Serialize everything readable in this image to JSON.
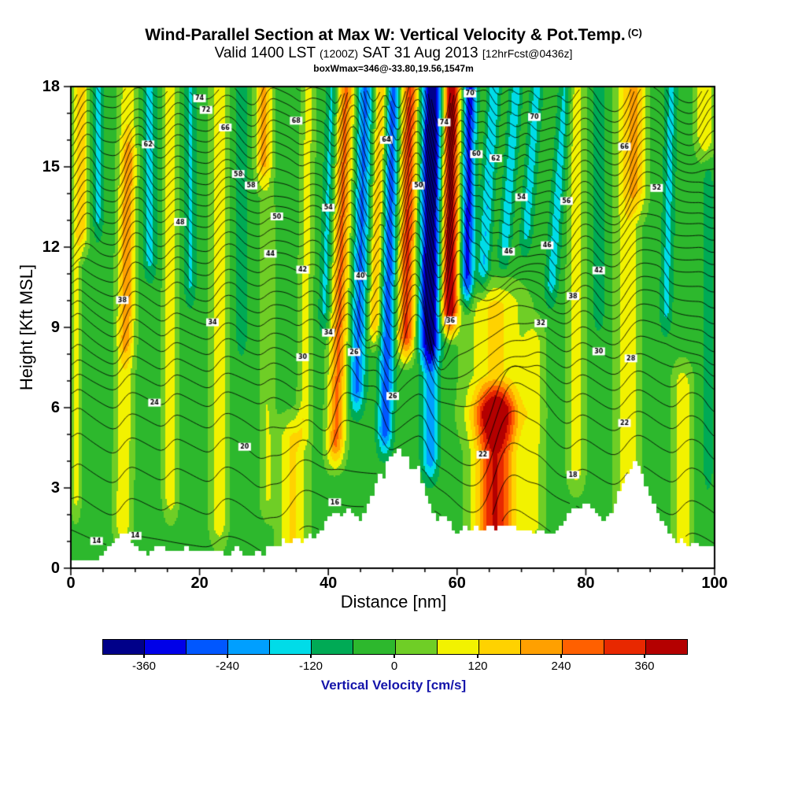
{
  "title": {
    "main": "Wind-Parallel Section at Max W: Vertical Velocity & Pot.Temp.",
    "main_suffix": "(C)",
    "valid_pre": "Valid 1400 LST ",
    "valid_small1": "(1200Z)",
    "valid_mid": " SAT 31 Aug 2013 ",
    "valid_small2": "[12hrFcst@0436z]",
    "box_line": "boxWmax=346@-33.80,19.56,1547m"
  },
  "chart_data": {
    "type": "heatmap",
    "title": "Wind-Parallel Section at Max W: Vertical Velocity & Pot.Temp. (C)",
    "subtitle": "Valid 1400 LST (1200Z) SAT 31 Aug 2013 [12hrFcst@0436z]",
    "annotation": "boxWmax=346@-33.80,19.56,1547m",
    "xlabel": "Distance [nm]",
    "ylabel": "Height [Kft MSL]",
    "xlim": [
      0,
      100
    ],
    "ylim": [
      0,
      18
    ],
    "xticks": [
      0,
      20,
      40,
      60,
      80,
      100
    ],
    "yticks": [
      0,
      3,
      6,
      9,
      12,
      15,
      18
    ],
    "grid": false,
    "background_w": -30,
    "colorbar": {
      "label": "Vertical Velocity [cm/s]",
      "label_color": "#1414AA",
      "ticks": [
        -360,
        -240,
        -120,
        0,
        120,
        240,
        360
      ],
      "levels": [
        -420,
        -360,
        -300,
        -240,
        -180,
        -120,
        -60,
        0,
        60,
        120,
        180,
        240,
        300,
        360,
        420
      ],
      "colors": [
        "#000089",
        "#0000E8",
        "#0057FF",
        "#009FFF",
        "#00DCE8",
        "#00AA55",
        "#2DB82D",
        "#6FCE26",
        "#F2F200",
        "#FFD200",
        "#FFA000",
        "#FF6000",
        "#E82800",
        "#B40000"
      ]
    },
    "bands_format": [
      "center_nm",
      "sigma_nm",
      "amplitude_cm_s",
      "z_base_kft",
      "z_top_kft",
      "tilt_nm_per_kft"
    ],
    "bands": [
      [
        1.5,
        1.2,
        200,
        12,
        18,
        0
      ],
      [
        0.8,
        0.8,
        110,
        2,
        12,
        0
      ],
      [
        4.2,
        0.8,
        -110,
        12.5,
        18,
        0
      ],
      [
        8.5,
        1.4,
        140,
        1,
        18,
        0.05
      ],
      [
        8.7,
        1.2,
        120,
        8,
        16,
        0.05
      ],
      [
        12.3,
        1.0,
        -120,
        11,
        18,
        0
      ],
      [
        15.5,
        1.2,
        130,
        2,
        18,
        0
      ],
      [
        18.5,
        0.9,
        -100,
        10,
        18,
        0
      ],
      [
        23,
        1.4,
        130,
        1,
        18,
        0
      ],
      [
        26.5,
        1.0,
        -60,
        8,
        18,
        0
      ],
      [
        30,
        1.3,
        230,
        14.5,
        18,
        0
      ],
      [
        30.5,
        1.2,
        90,
        2,
        14,
        0
      ],
      [
        34.5,
        2.2,
        160,
        0,
        5.5,
        0
      ],
      [
        36.5,
        1.1,
        110,
        5,
        18,
        0.05
      ],
      [
        39.5,
        0.9,
        -120,
        9,
        18,
        0.15
      ],
      [
        41.8,
        1.4,
        280,
        4,
        18,
        0.12
      ],
      [
        44.8,
        1.2,
        -220,
        6,
        18,
        0.12
      ],
      [
        47.3,
        1.0,
        210,
        8.5,
        18,
        0.12
      ],
      [
        49.3,
        1.1,
        -250,
        4.5,
        18,
        0.1
      ],
      [
        52.2,
        1.4,
        340,
        8,
        18,
        0.06
      ],
      [
        55.8,
        1.6,
        -420,
        8,
        18,
        0.05
      ],
      [
        55.8,
        1.2,
        -200,
        3.5,
        8,
        0
      ],
      [
        58.8,
        1.4,
        450,
        9,
        18,
        0.04
      ],
      [
        61.5,
        1.0,
        -300,
        10,
        18,
        0.06
      ],
      [
        63.8,
        0.9,
        -150,
        10.5,
        18,
        0.25
      ],
      [
        66.8,
        0.9,
        -130,
        11.5,
        18,
        0.3
      ],
      [
        70,
        0.9,
        -120,
        12,
        18,
        0.3
      ],
      [
        66,
        3.2,
        395,
        0.5,
        6.5,
        0
      ],
      [
        66,
        4.5,
        160,
        5,
        10.5,
        0
      ],
      [
        72,
        1.6,
        100,
        1,
        9,
        0
      ],
      [
        74.5,
        1.0,
        -120,
        10,
        18,
        0.3
      ],
      [
        78.5,
        1.4,
        120,
        3,
        18,
        0
      ],
      [
        82,
        1.0,
        -70,
        9,
        18,
        0
      ],
      [
        86.5,
        1.9,
        140,
        1,
        18,
        0
      ],
      [
        88,
        1.6,
        140,
        13.5,
        18,
        0
      ],
      [
        92.5,
        0.9,
        -110,
        9,
        18,
        0.1
      ],
      [
        95,
        1.6,
        130,
        0,
        7.5,
        0
      ],
      [
        98.5,
        1.5,
        150,
        15.5,
        18,
        0
      ],
      [
        99,
        0.8,
        -60,
        3,
        15,
        0
      ]
    ],
    "terrain": [
      [
        0,
        0.35
      ],
      [
        1,
        0.3
      ],
      [
        2,
        0.4
      ],
      [
        3,
        0.3
      ],
      [
        4,
        0.35
      ],
      [
        5,
        0.5
      ],
      [
        6,
        0.8
      ],
      [
        7,
        1.1
      ],
      [
        8,
        1.4
      ],
      [
        9,
        1.2
      ],
      [
        10,
        0.8
      ],
      [
        11,
        0.6
      ],
      [
        12,
        0.55
      ],
      [
        13,
        0.7
      ],
      [
        14,
        0.85
      ],
      [
        15,
        0.7
      ],
      [
        16,
        0.6
      ],
      [
        17,
        0.7
      ],
      [
        18,
        0.75
      ],
      [
        19,
        0.6
      ],
      [
        20,
        0.55
      ],
      [
        21,
        0.65
      ],
      [
        22,
        0.7
      ],
      [
        23,
        0.6
      ],
      [
        24,
        0.5
      ],
      [
        25,
        0.6
      ],
      [
        26,
        0.75
      ],
      [
        27,
        0.55
      ],
      [
        28,
        0.45
      ],
      [
        29,
        0.6
      ],
      [
        30,
        0.5
      ],
      [
        31,
        0.9
      ],
      [
        32,
        0.7
      ],
      [
        33,
        1.15
      ],
      [
        34,
        0.95
      ],
      [
        35,
        1.25
      ],
      [
        36,
        1.0
      ],
      [
        37,
        1.3
      ],
      [
        38,
        1.15
      ],
      [
        39,
        1.5
      ],
      [
        40,
        1.8
      ],
      [
        41,
        2.1
      ],
      [
        42,
        1.9
      ],
      [
        43,
        2.25
      ],
      [
        44,
        2.0
      ],
      [
        45,
        1.75
      ],
      [
        46,
        2.3
      ],
      [
        47,
        2.9
      ],
      [
        48,
        3.5
      ],
      [
        48.5,
        3.2
      ],
      [
        49,
        3.9
      ],
      [
        50,
        4.3
      ],
      [
        51,
        4.45
      ],
      [
        51.5,
        4.1
      ],
      [
        52,
        4.3
      ],
      [
        53,
        3.6
      ],
      [
        54,
        3.9
      ],
      [
        54.5,
        3.4
      ],
      [
        55,
        2.8
      ],
      [
        56,
        2.3
      ],
      [
        57,
        1.8
      ],
      [
        58,
        2.0
      ],
      [
        59,
        1.6
      ],
      [
        60,
        1.3
      ],
      [
        61,
        1.6
      ],
      [
        62,
        1.35
      ],
      [
        63,
        1.55
      ],
      [
        64,
        1.4
      ],
      [
        65,
        1.6
      ],
      [
        66,
        1.45
      ],
      [
        67,
        1.6
      ],
      [
        68,
        1.5
      ],
      [
        69,
        1.65
      ],
      [
        70,
        1.4
      ],
      [
        71,
        1.55
      ],
      [
        72,
        1.3
      ],
      [
        73,
        1.45
      ],
      [
        74,
        1.2
      ],
      [
        75,
        1.35
      ],
      [
        76,
        1.5
      ],
      [
        77,
        1.9
      ],
      [
        78,
        2.3
      ],
      [
        79,
        2.1
      ],
      [
        80,
        2.5
      ],
      [
        81,
        2.3
      ],
      [
        82,
        2.0
      ],
      [
        83,
        1.7
      ],
      [
        84,
        2.1
      ],
      [
        85,
        2.7
      ],
      [
        86,
        3.3
      ],
      [
        87,
        3.7
      ],
      [
        87.5,
        4.0
      ],
      [
        88,
        3.8
      ],
      [
        88.5,
        3.95
      ],
      [
        89,
        3.3
      ],
      [
        90,
        2.7
      ],
      [
        91,
        2.2
      ],
      [
        92,
        1.7
      ],
      [
        93,
        1.25
      ],
      [
        94,
        0.95
      ],
      [
        95,
        1.15
      ],
      [
        96,
        0.85
      ],
      [
        97,
        1.0
      ],
      [
        98,
        0.75
      ],
      [
        99,
        0.85
      ],
      [
        100,
        0.7
      ]
    ],
    "isentropes": {
      "base_heights": [
        1.0,
        2.3,
        3.5,
        4.6,
        5.5,
        6.3,
        7.0,
        7.6,
        8.2,
        8.75,
        9.3,
        9.8,
        10.3,
        10.8,
        11.3,
        11.75,
        12.2,
        12.65,
        13.1,
        13.5,
        13.9,
        14.3,
        14.7,
        15.1,
        15.5,
        15.9,
        16.3,
        16.7,
        17.1,
        17.5,
        17.9
      ],
      "label_start": 14,
      "label_step": 2,
      "displacement_factor": 0.0033
    }
  }
}
